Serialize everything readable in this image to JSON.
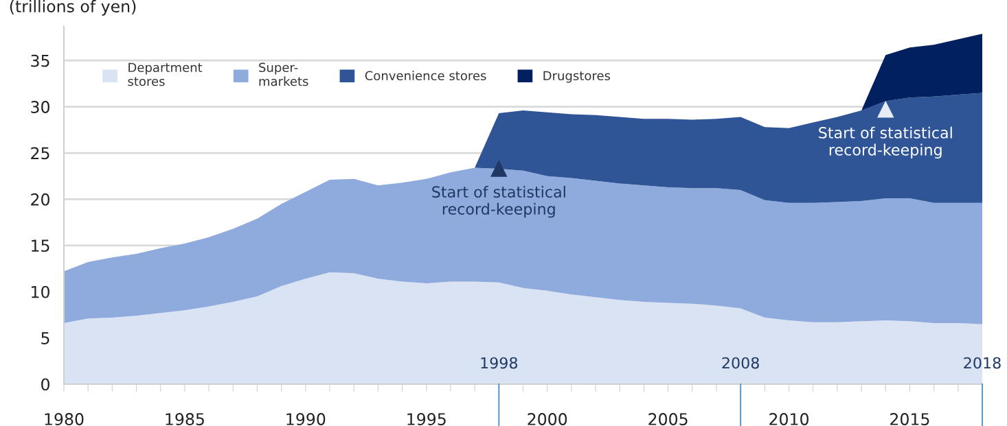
{
  "chart_data": {
    "type": "area",
    "stacked": true,
    "ylabel": "(trillions of yen)",
    "x": [
      1980,
      1981,
      1982,
      1983,
      1984,
      1985,
      1986,
      1987,
      1988,
      1989,
      1990,
      1991,
      1992,
      1993,
      1994,
      1995,
      1996,
      1997,
      1998,
      1999,
      2000,
      2001,
      2002,
      2003,
      2004,
      2005,
      2006,
      2007,
      2008,
      2009,
      2010,
      2011,
      2012,
      2013,
      2014,
      2015,
      2016,
      2017,
      2018
    ],
    "series": [
      {
        "name": "Department\nstores",
        "color": "#dae3f3",
        "values": [
          6.6,
          7.1,
          7.2,
          7.4,
          7.7,
          8.0,
          8.4,
          8.9,
          9.5,
          10.6,
          11.4,
          12.1,
          12.0,
          11.4,
          11.1,
          10.9,
          11.1,
          11.1,
          11.0,
          10.4,
          10.1,
          9.7,
          9.4,
          9.1,
          8.9,
          8.8,
          8.7,
          8.5,
          8.2,
          7.2,
          6.9,
          6.7,
          6.7,
          6.8,
          6.9,
          6.8,
          6.6,
          6.6,
          6.5
        ]
      },
      {
        "name": "Super-\nmarkets",
        "color": "#8faadc",
        "values": [
          5.6,
          6.1,
          6.5,
          6.7,
          7.0,
          7.2,
          7.5,
          7.9,
          8.4,
          8.9,
          9.4,
          10.0,
          10.2,
          10.1,
          10.7,
          11.3,
          11.8,
          12.3,
          12.3,
          12.7,
          12.4,
          12.6,
          12.6,
          12.6,
          12.6,
          12.5,
          12.5,
          12.7,
          12.8,
          12.7,
          12.7,
          12.9,
          13.0,
          13.0,
          13.2,
          13.3,
          13.0,
          13.0,
          13.1
        ]
      },
      {
        "name": "Convenience stores",
        "color": "#2f5597",
        "values": [
          null,
          null,
          null,
          null,
          null,
          null,
          null,
          null,
          null,
          null,
          null,
          null,
          null,
          null,
          null,
          null,
          null,
          0,
          6.0,
          6.5,
          6.9,
          6.9,
          7.1,
          7.2,
          7.2,
          7.4,
          7.4,
          7.5,
          7.9,
          7.9,
          8.1,
          8.7,
          9.2,
          9.8,
          10.5,
          10.9,
          11.5,
          11.7,
          11.9
        ]
      },
      {
        "name": "Drugstores",
        "color": "#002060",
        "values": [
          null,
          null,
          null,
          null,
          null,
          null,
          null,
          null,
          null,
          null,
          null,
          null,
          null,
          null,
          null,
          null,
          null,
          null,
          null,
          null,
          null,
          null,
          null,
          null,
          null,
          null,
          null,
          null,
          null,
          null,
          null,
          null,
          null,
          0,
          5.0,
          5.4,
          5.6,
          6.0,
          6.4
        ]
      }
    ],
    "xlim": [
      1980,
      2018
    ],
    "xticks": [
      1980,
      {
        "value": 1981,
        "label": null
      },
      {
        "value": 1982,
        "label": null
      },
      {
        "value": 1983,
        "label": null
      },
      {
        "value": 1984,
        "label": null
      },
      1985,
      {
        "value": 1986,
        "label": null
      },
      {
        "value": 1987,
        "label": null
      },
      {
        "value": 1988,
        "label": null
      },
      {
        "value": 1989,
        "label": null
      },
      1990,
      {
        "value": 1991,
        "label": null
      },
      {
        "value": 1992,
        "label": null
      },
      {
        "value": 1993,
        "label": null
      },
      {
        "value": 1994,
        "label": null
      },
      1995,
      {
        "value": 1996,
        "label": null
      },
      {
        "value": 1997,
        "label": null
      },
      {
        "value": 1998,
        "label": null
      },
      {
        "value": 1999,
        "label": null
      },
      2000,
      {
        "value": 2001,
        "label": null
      },
      {
        "value": 2002,
        "label": null
      },
      {
        "value": 2003,
        "label": null
      },
      {
        "value": 2004,
        "label": null
      },
      2005,
      {
        "value": 2006,
        "label": null
      },
      {
        "value": 2007,
        "label": null
      },
      {
        "value": 2008,
        "label": null
      },
      {
        "value": 2009,
        "label": null
      },
      2010,
      {
        "value": 2011,
        "label": null
      },
      {
        "value": 2012,
        "label": null
      },
      {
        "value": 2013,
        "label": null
      },
      {
        "value": 2014,
        "label": null
      },
      2015,
      {
        "value": 2016,
        "label": null
      },
      {
        "value": 2017,
        "label": null
      },
      {
        "value": 2018,
        "label": null
      }
    ],
    "ylim": [
      0,
      38.7
    ],
    "yticks": [
      0,
      5,
      10,
      15,
      20,
      25,
      30,
      35
    ],
    "grid": "y",
    "legend": "top left",
    "ref_lines": [
      {
        "axis": "x",
        "value": 1998,
        "label": "1998",
        "color": "#5b9bd5"
      },
      {
        "axis": "x",
        "value": 2008,
        "label": "2008",
        "color": "#5b9bd5"
      },
      {
        "axis": "x",
        "value": 2018,
        "label": "2018",
        "color": "#5b9bd5"
      }
    ],
    "annotations": [
      {
        "text": "Start of statistical\nrecord-keeping",
        "x": 1998,
        "y": 23.3
      },
      {
        "text": "Start of statistical\nrecord-keeping",
        "x": 2014,
        "y": 29.7
      }
    ]
  }
}
